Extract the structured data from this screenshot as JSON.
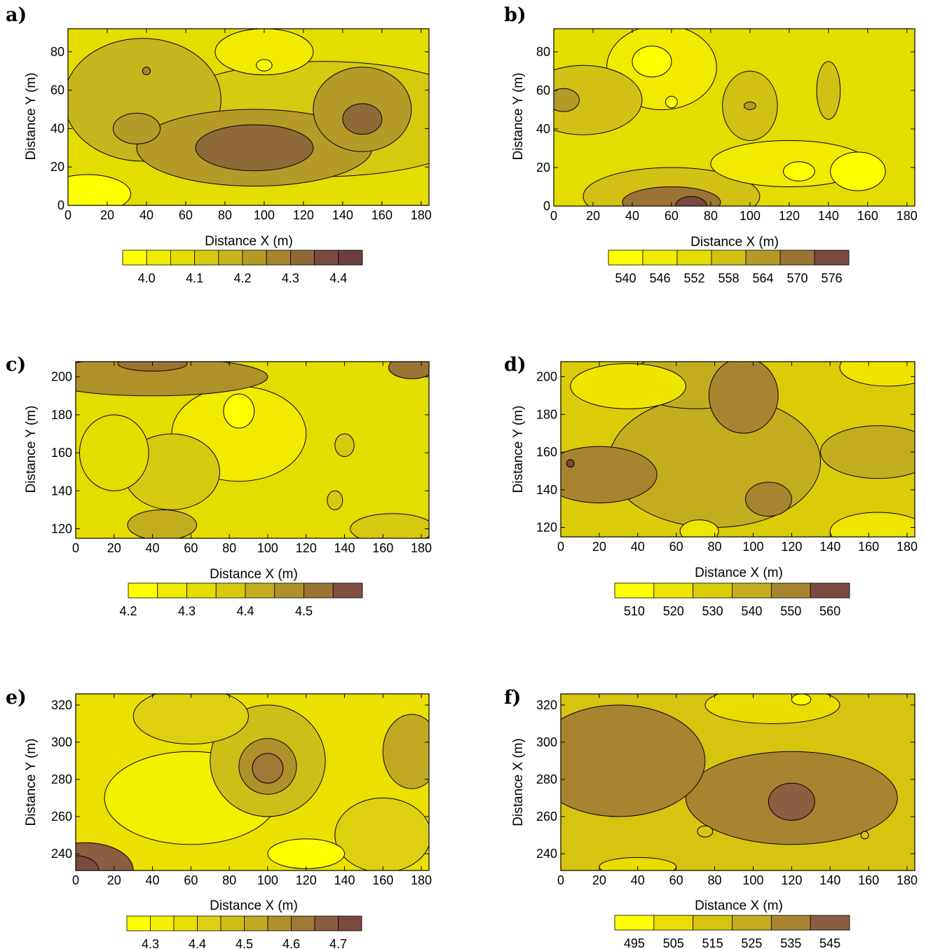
{
  "panels": [
    {
      "letter": "a)",
      "xlabel": "Distance X (m)",
      "ylabel": "Distance Y (m)"
    },
    {
      "letter": "b)",
      "xlabel": "Distance X (m)",
      "ylabel": "Distance Y (m)"
    },
    {
      "letter": "c)",
      "xlabel": "Distance X (m)",
      "ylabel": "Distance Y (m)"
    },
    {
      "letter": "d)",
      "xlabel": "Distance X (m)",
      "ylabel": "Distance Y (m)"
    },
    {
      "letter": "e)",
      "xlabel": "Distance X (m)",
      "ylabel": "Distance Y (m)"
    },
    {
      "letter": "f)",
      "xlabel": "Distance X (m)",
      "ylabel": "Distance X (m)"
    }
  ],
  "chart_data": [
    {
      "type": "heatmap",
      "panel": "a)",
      "xlabel": "Distance X (m)",
      "ylabel": "Distance Y (m)",
      "xlim": [
        0,
        184
      ],
      "ylim": [
        0,
        92
      ],
      "xticks": [
        0,
        20,
        40,
        60,
        80,
        100,
        120,
        140,
        160,
        180
      ],
      "yticks": [
        0,
        20,
        40,
        60,
        80
      ],
      "colorbar": {
        "boundaries": [
          3.95,
          4.0,
          4.05,
          4.1,
          4.15,
          4.2,
          4.25,
          4.3,
          4.35,
          4.4,
          4.45
        ],
        "colors": [
          "#ffff00",
          "#f2ea00",
          "#e5dc00",
          "#d7c810",
          "#c8b41c",
          "#b59a28",
          "#a88430",
          "#8f6a38",
          "#7a4a40",
          "#6e3e3e"
        ],
        "ticks": [
          "4.0",
          "4.1",
          "4.2",
          "4.3",
          "4.4"
        ],
        "tick_values": [
          4.0,
          4.1,
          4.2,
          4.3,
          4.4
        ]
      },
      "features": [
        {
          "x": 95,
          "y": 30,
          "level": 5,
          "rx": 60,
          "ry": 20
        },
        {
          "x": 130,
          "y": 45,
          "level": 3,
          "rx": 85,
          "ry": 30
        },
        {
          "x": 95,
          "y": 30,
          "level": 7,
          "rx": 30,
          "ry": 12
        },
        {
          "x": 150,
          "y": 45,
          "level": 7,
          "rx": 10,
          "ry": 8
        },
        {
          "x": 150,
          "y": 50,
          "level": 5,
          "rx": 25,
          "ry": 22
        },
        {
          "x": 35,
          "y": 40,
          "level": 5,
          "rx": 12,
          "ry": 8
        },
        {
          "x": 38,
          "y": 55,
          "level": 4,
          "rx": 40,
          "ry": 32
        },
        {
          "x": 10,
          "y": 6,
          "level": 0,
          "rx": 22,
          "ry": 10
        },
        {
          "x": 100,
          "y": 80,
          "level": 1,
          "rx": 25,
          "ry": 12
        },
        {
          "x": 100,
          "y": 73,
          "level": 0,
          "rx": 4,
          "ry": 3
        },
        {
          "x": 40,
          "y": 70,
          "level": 6,
          "rx": 2,
          "ry": 2
        }
      ]
    },
    {
      "type": "heatmap",
      "panel": "b)",
      "xlabel": "Distance X (m)",
      "ylabel": "Distance Y (m)",
      "xlim": [
        0,
        184
      ],
      "ylim": [
        0,
        92
      ],
      "xticks": [
        0,
        20,
        40,
        60,
        80,
        100,
        120,
        140,
        160,
        180
      ],
      "yticks": [
        0,
        20,
        40,
        60,
        80
      ],
      "colorbar": {
        "boundaries": [
          537,
          543,
          549,
          555,
          561,
          567,
          573,
          579
        ],
        "colors": [
          "#ffff00",
          "#f2ea00",
          "#e5dc00",
          "#d2c014",
          "#b59a28",
          "#9b7334",
          "#7a4a40"
        ],
        "ticks": [
          "540",
          "546",
          "552",
          "558",
          "564",
          "570",
          "576"
        ],
        "tick_values": [
          540,
          546,
          552,
          558,
          564,
          570,
          576
        ]
      },
      "features": [
        {
          "x": 55,
          "y": 72,
          "level": 1,
          "rx": 28,
          "ry": 22
        },
        {
          "x": 50,
          "y": 75,
          "level": 0,
          "rx": 10,
          "ry": 8
        },
        {
          "x": 60,
          "y": 54,
          "level": 0,
          "rx": 3,
          "ry": 3
        },
        {
          "x": 120,
          "y": 22,
          "level": 1,
          "rx": 40,
          "ry": 12
        },
        {
          "x": 155,
          "y": 18,
          "level": 0,
          "rx": 14,
          "ry": 10
        },
        {
          "x": 125,
          "y": 18,
          "level": 0,
          "rx": 8,
          "ry": 5
        },
        {
          "x": 15,
          "y": 55,
          "level": 3,
          "rx": 30,
          "ry": 18
        },
        {
          "x": 5,
          "y": 55,
          "level": 4,
          "rx": 8,
          "ry": 6
        },
        {
          "x": 100,
          "y": 52,
          "level": 3,
          "rx": 14,
          "ry": 18
        },
        {
          "x": 100,
          "y": 52,
          "level": 4,
          "rx": 3,
          "ry": 2
        },
        {
          "x": 140,
          "y": 60,
          "level": 3,
          "rx": 6,
          "ry": 15
        },
        {
          "x": 60,
          "y": 5,
          "level": 3,
          "rx": 45,
          "ry": 15
        },
        {
          "x": 60,
          "y": 2,
          "level": 5,
          "rx": 25,
          "ry": 8
        },
        {
          "x": 70,
          "y": 0,
          "level": 6,
          "rx": 8,
          "ry": 5
        }
      ]
    },
    {
      "type": "heatmap",
      "panel": "c)",
      "xlabel": "Distance X (m)",
      "ylabel": "Distance Y (m)",
      "xlim": [
        0,
        184
      ],
      "ylim": [
        115,
        208
      ],
      "xticks": [
        0,
        20,
        40,
        60,
        80,
        100,
        120,
        140,
        160,
        180
      ],
      "yticks": [
        120,
        140,
        160,
        180,
        200
      ],
      "colorbar": {
        "boundaries": [
          4.2,
          4.25,
          4.3,
          4.35,
          4.4,
          4.45,
          4.5,
          4.55,
          4.6
        ],
        "colors": [
          "#ffff00",
          "#f2ea00",
          "#e5dc00",
          "#d7c810",
          "#c3ad1e",
          "#b09028",
          "#9b7334",
          "#7f5040"
        ],
        "ticks": [
          "4.2",
          "4.3",
          "4.4",
          "4.5"
        ],
        "tick_values": [
          4.2,
          4.3,
          4.4,
          4.5
        ]
      },
      "features": [
        {
          "x": 85,
          "y": 170,
          "level": 1,
          "rx": 35,
          "ry": 25
        },
        {
          "x": 85,
          "y": 182,
          "level": 0,
          "rx": 8,
          "ry": 9
        },
        {
          "x": 40,
          "y": 200,
          "level": 5,
          "rx": 60,
          "ry": 10
        },
        {
          "x": 40,
          "y": 207,
          "level": 6,
          "rx": 18,
          "ry": 4
        },
        {
          "x": 175,
          "y": 205,
          "level": 6,
          "rx": 12,
          "ry": 6
        },
        {
          "x": 50,
          "y": 150,
          "level": 3,
          "rx": 25,
          "ry": 20
        },
        {
          "x": 45,
          "y": 122,
          "level": 4,
          "rx": 18,
          "ry": 8
        },
        {
          "x": 20,
          "y": 160,
          "level": 2,
          "rx": 18,
          "ry": 20
        },
        {
          "x": 140,
          "y": 164,
          "level": 3,
          "rx": 5,
          "ry": 6
        },
        {
          "x": 135,
          "y": 135,
          "level": 3,
          "rx": 4,
          "ry": 5
        },
        {
          "x": 165,
          "y": 120,
          "level": 3,
          "rx": 22,
          "ry": 8
        }
      ]
    },
    {
      "type": "heatmap",
      "panel": "d)",
      "xlabel": "Distance X (m)",
      "ylabel": "Distance Y (m)",
      "xlim": [
        0,
        184
      ],
      "ylim": [
        115,
        208
      ],
      "xticks": [
        0,
        20,
        40,
        60,
        80,
        100,
        120,
        140,
        160,
        180
      ],
      "yticks": [
        120,
        140,
        160,
        180,
        200
      ],
      "colorbar": {
        "boundaries": [
          505,
          515,
          525,
          535,
          545,
          555,
          565
        ],
        "colors": [
          "#ffff00",
          "#efe400",
          "#dccb08",
          "#c3ad1e",
          "#a88430",
          "#7a4a40"
        ],
        "ticks": [
          "510",
          "520",
          "530",
          "540",
          "550",
          "560"
        ],
        "tick_values": [
          510,
          520,
          530,
          540,
          550,
          560
        ]
      },
      "features": [
        {
          "x": 95,
          "y": 190,
          "level": 4,
          "rx": 18,
          "ry": 20
        },
        {
          "x": 20,
          "y": 148,
          "level": 4,
          "rx": 30,
          "ry": 15
        },
        {
          "x": 5,
          "y": 154,
          "level": 5,
          "rx": 2,
          "ry": 2
        },
        {
          "x": 108,
          "y": 135,
          "level": 4,
          "rx": 12,
          "ry": 9
        },
        {
          "x": 165,
          "y": 160,
          "level": 3,
          "rx": 30,
          "ry": 14
        },
        {
          "x": 80,
          "y": 155,
          "level": 3,
          "rx": 55,
          "ry": 35
        },
        {
          "x": 70,
          "y": 198,
          "level": 3,
          "rx": 35,
          "ry": 15
        },
        {
          "x": 35,
          "y": 195,
          "level": 1,
          "rx": 30,
          "ry": 12
        },
        {
          "x": 170,
          "y": 205,
          "level": 1,
          "rx": 25,
          "ry": 10
        },
        {
          "x": 165,
          "y": 118,
          "level": 1,
          "rx": 25,
          "ry": 10
        },
        {
          "x": 72,
          "y": 118,
          "level": 1,
          "rx": 10,
          "ry": 6
        }
      ]
    },
    {
      "type": "heatmap",
      "panel": "e)",
      "xlabel": "Distance X (m)",
      "ylabel": "Distance Y (m)",
      "xlim": [
        0,
        184
      ],
      "ylim": [
        231,
        326
      ],
      "xticks": [
        0,
        20,
        40,
        60,
        80,
        100,
        120,
        140,
        160,
        180
      ],
      "yticks": [
        240,
        260,
        280,
        300,
        320
      ],
      "colorbar": {
        "boundaries": [
          4.25,
          4.3,
          4.35,
          4.4,
          4.45,
          4.5,
          4.55,
          4.6,
          4.65,
          4.7,
          4.75
        ],
        "colors": [
          "#ffff00",
          "#f5ef00",
          "#ebe000",
          "#ded010",
          "#d0be18",
          "#c0a820",
          "#b0902a",
          "#a07838",
          "#8a5e40",
          "#7a4a40"
        ],
        "ticks": [
          "4.3",
          "4.4",
          "4.5",
          "4.6",
          "4.7"
        ],
        "tick_values": [
          4.3,
          4.4,
          4.5,
          4.6,
          4.7
        ]
      },
      "features": [
        {
          "x": 100,
          "y": 290,
          "level": 4,
          "rx": 30,
          "ry": 30
        },
        {
          "x": 100,
          "y": 287,
          "level": 6,
          "rx": 15,
          "ry": 15
        },
        {
          "x": 100,
          "y": 286,
          "level": 7,
          "rx": 8,
          "ry": 8
        },
        {
          "x": 60,
          "y": 270,
          "level": 1,
          "rx": 45,
          "ry": 25
        },
        {
          "x": 120,
          "y": 240,
          "level": 0,
          "rx": 20,
          "ry": 8
        },
        {
          "x": 175,
          "y": 295,
          "level": 5,
          "rx": 15,
          "ry": 20
        },
        {
          "x": 5,
          "y": 231,
          "level": 8,
          "rx": 25,
          "ry": 15
        },
        {
          "x": 0,
          "y": 231,
          "level": 9,
          "rx": 12,
          "ry": 8
        },
        {
          "x": 60,
          "y": 314,
          "level": 3,
          "rx": 30,
          "ry": 15
        },
        {
          "x": 160,
          "y": 250,
          "level": 3,
          "rx": 25,
          "ry": 20
        }
      ]
    },
    {
      "type": "heatmap",
      "panel": "f)",
      "xlabel": "Distance X (m)",
      "ylabel": "Distance X (m)",
      "xlim": [
        0,
        184
      ],
      "ylim": [
        231,
        326
      ],
      "xticks": [
        0,
        20,
        40,
        60,
        80,
        100,
        120,
        140,
        160,
        180
      ],
      "yticks": [
        240,
        260,
        280,
        300,
        320
      ],
      "colorbar": {
        "boundaries": [
          490,
          500,
          510,
          520,
          530,
          540,
          550
        ],
        "colors": [
          "#ffff00",
          "#ebdc00",
          "#d6c410",
          "#c3ad1e",
          "#a88430",
          "#8a5e40"
        ],
        "ticks": [
          "495",
          "505",
          "515",
          "525",
          "535",
          "545"
        ],
        "tick_values": [
          495,
          505,
          515,
          525,
          535,
          545
        ]
      },
      "features": [
        {
          "x": 30,
          "y": 290,
          "level": 4,
          "rx": 45,
          "ry": 30
        },
        {
          "x": 120,
          "y": 270,
          "level": 4,
          "rx": 55,
          "ry": 25
        },
        {
          "x": 120,
          "y": 268,
          "level": 5,
          "rx": 12,
          "ry": 10
        },
        {
          "x": 110,
          "y": 320,
          "level": 1,
          "rx": 35,
          "ry": 10
        },
        {
          "x": 125,
          "y": 323,
          "level": 0,
          "rx": 5,
          "ry": 3
        },
        {
          "x": 40,
          "y": 233,
          "level": 1,
          "rx": 20,
          "ry": 5
        },
        {
          "x": 75,
          "y": 252,
          "level": 2,
          "rx": 4,
          "ry": 3
        },
        {
          "x": 158,
          "y": 250,
          "level": 2,
          "rx": 2,
          "ry": 2
        }
      ]
    }
  ]
}
